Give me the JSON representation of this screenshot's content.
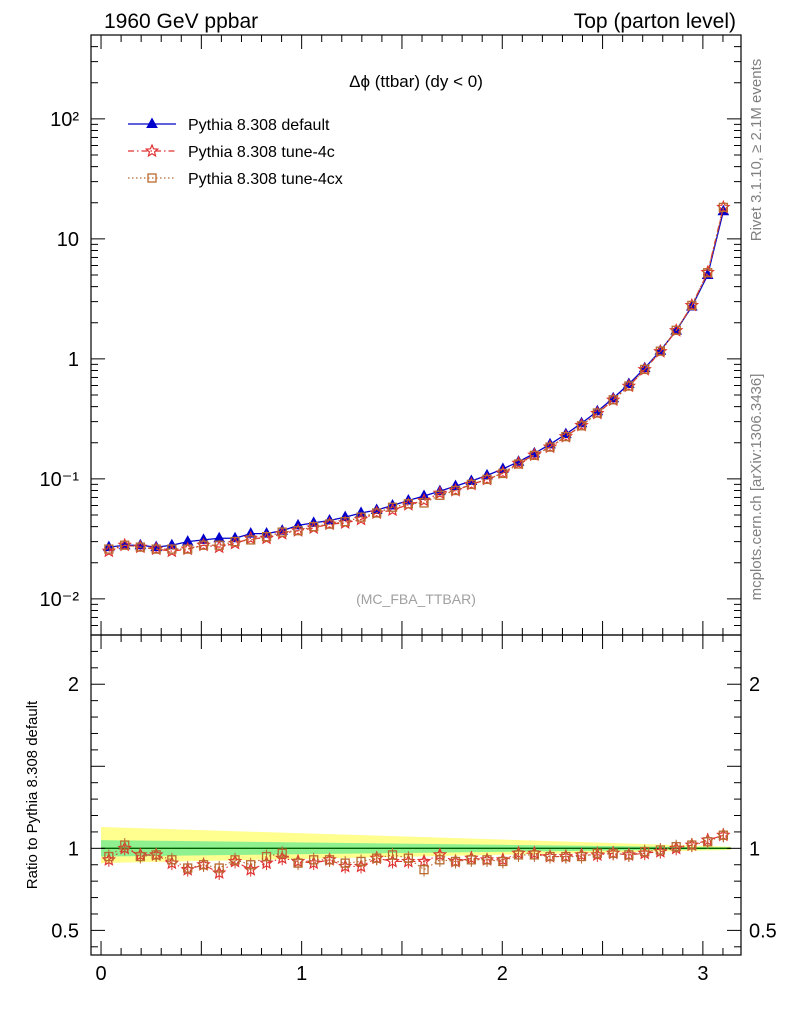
{
  "header": {
    "left": "1960 GeV ppbar",
    "right": "Top (parton level)"
  },
  "side_labels": {
    "rivet": "Rivet 3.1.10, ≥ 2.1M events",
    "source": "mcplots.cern.ch [arXiv:1306.3436]"
  },
  "watermark": "(MC_FBA_TTBAR)",
  "chart_data": [
    {
      "type": "line",
      "title": "Δϕ (ttbar) (dy < 0)",
      "xlabel": "",
      "ylabel": "",
      "xlim": [
        -0.05,
        3.19
      ],
      "ylim": [
        0.005,
        500
      ],
      "yscale": "log",
      "grid": false,
      "legend_position": "top-left",
      "y_tick_labels": [
        "10⁻²",
        "10⁻¹",
        "1",
        "10",
        "10²"
      ],
      "x": [
        0.039,
        0.118,
        0.196,
        0.275,
        0.353,
        0.432,
        0.511,
        0.589,
        0.668,
        0.746,
        0.825,
        0.903,
        0.982,
        1.06,
        1.139,
        1.217,
        1.296,
        1.374,
        1.453,
        1.532,
        1.61,
        1.689,
        1.767,
        1.846,
        1.924,
        2.003,
        2.081,
        2.16,
        2.238,
        2.317,
        2.395,
        2.474,
        2.553,
        2.631,
        2.71,
        2.788,
        2.867,
        2.945,
        3.024,
        3.102
      ],
      "series": [
        {
          "name": "Pythia 8.308 default",
          "color": "#0000cc",
          "marker": "triangle",
          "line": "solid",
          "values": [
            0.027,
            0.028,
            0.028,
            0.027,
            0.028,
            0.03,
            0.031,
            0.032,
            0.032,
            0.035,
            0.035,
            0.037,
            0.041,
            0.043,
            0.045,
            0.048,
            0.052,
            0.055,
            0.06,
            0.066,
            0.072,
            0.079,
            0.087,
            0.096,
            0.107,
            0.121,
            0.139,
            0.163,
            0.194,
            0.236,
            0.291,
            0.366,
            0.47,
            0.617,
            0.837,
            1.17,
            1.72,
            2.73,
            5.0,
            17.0
          ]
        },
        {
          "name": "Pythia 8.308 tune-4c",
          "color": "#e03030",
          "marker": "star",
          "line": "dashdot",
          "values": [
            0.025,
            0.028,
            0.027,
            0.026,
            0.025,
            0.026,
            0.028,
            0.027,
            0.029,
            0.032,
            0.032,
            0.035,
            0.037,
            0.039,
            0.042,
            0.043,
            0.046,
            0.052,
            0.055,
            0.061,
            0.066,
            0.076,
            0.08,
            0.09,
            0.099,
            0.112,
            0.135,
            0.158,
            0.184,
            0.225,
            0.279,
            0.351,
            0.454,
            0.592,
            0.814,
            1.15,
            1.72,
            2.79,
            5.25,
            18.3
          ]
        },
        {
          "name": "Pythia 8.308 tune-4cx",
          "color": "#b86a30",
          "marker": "open-square",
          "line": "dotted",
          "values": [
            0.026,
            0.028,
            0.027,
            0.026,
            0.026,
            0.026,
            0.028,
            0.028,
            0.03,
            0.031,
            0.033,
            0.036,
            0.037,
            0.04,
            0.042,
            0.044,
            0.048,
            0.052,
            0.058,
            0.062,
            0.063,
            0.073,
            0.08,
            0.09,
            0.099,
            0.111,
            0.133,
            0.157,
            0.184,
            0.225,
            0.277,
            0.354,
            0.456,
            0.594,
            0.817,
            1.16,
            1.73,
            2.79,
            5.22,
            18.3
          ]
        }
      ]
    },
    {
      "type": "line",
      "title": "",
      "xlabel": "",
      "ylabel": "Ratio to Pythia 8.308 default",
      "xlim": [
        -0.05,
        3.19
      ],
      "ylim": [
        0.35,
        2.3
      ],
      "x_tick_labels": [
        "0",
        "1",
        "2",
        "3"
      ],
      "y_tick_labels": [
        "0.5",
        "1",
        "2"
      ],
      "reference_band": {
        "x": [
          0.0,
          3.14
        ],
        "yellow": {
          "upper": [
            1.13,
            1.01
          ],
          "lower": [
            0.91,
            0.99
          ]
        },
        "green": {
          "upper": [
            1.05,
            1.005
          ],
          "lower": [
            0.95,
            0.995
          ]
        }
      },
      "x": [
        0.039,
        0.118,
        0.196,
        0.275,
        0.353,
        0.432,
        0.511,
        0.589,
        0.668,
        0.746,
        0.825,
        0.903,
        0.982,
        1.06,
        1.139,
        1.217,
        1.296,
        1.374,
        1.453,
        1.532,
        1.61,
        1.689,
        1.767,
        1.846,
        1.924,
        2.003,
        2.081,
        2.16,
        2.238,
        2.317,
        2.395,
        2.474,
        2.553,
        2.631,
        2.71,
        2.788,
        2.867,
        2.945,
        3.024,
        3.102
      ],
      "series": [
        {
          "name": "Pythia 8.308 tune-4c",
          "color": "#e03030",
          "marker": "star",
          "values": [
            0.93,
            1.0,
            0.96,
            0.96,
            0.91,
            0.87,
            0.9,
            0.85,
            0.92,
            0.87,
            0.91,
            0.94,
            0.92,
            0.91,
            0.93,
            0.89,
            0.89,
            0.94,
            0.92,
            0.92,
            0.92,
            0.96,
            0.92,
            0.94,
            0.93,
            0.93,
            0.97,
            0.97,
            0.95,
            0.95,
            0.96,
            0.96,
            0.97,
            0.96,
            0.97,
            0.98,
            1.0,
            1.02,
            1.05,
            1.08
          ]
        },
        {
          "name": "Pythia 8.308 tune-4cx",
          "color": "#b86a30",
          "marker": "open-square",
          "values": [
            0.95,
            1.02,
            0.95,
            0.96,
            0.93,
            0.88,
            0.9,
            0.88,
            0.93,
            0.9,
            0.95,
            0.97,
            0.91,
            0.93,
            0.93,
            0.91,
            0.92,
            0.94,
            0.96,
            0.94,
            0.87,
            0.93,
            0.92,
            0.93,
            0.93,
            0.92,
            0.96,
            0.96,
            0.95,
            0.95,
            0.95,
            0.97,
            0.97,
            0.96,
            0.98,
            0.99,
            1.01,
            1.02,
            1.04,
            1.08
          ]
        }
      ]
    }
  ]
}
